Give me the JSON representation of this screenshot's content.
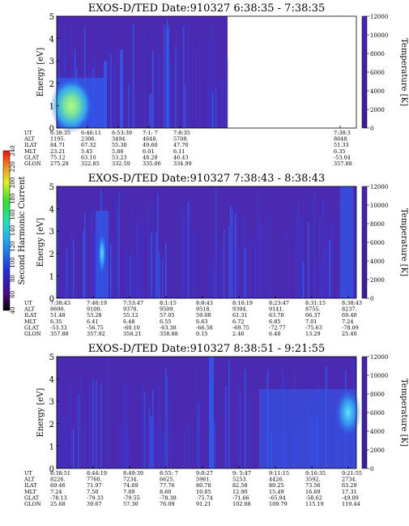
{
  "chart_data": [
    {
      "type": "heatmap",
      "title": "EXOS-D/TED   Date:910327  6:38:35 - 7:38:35",
      "ylabel": "Energy [eV]",
      "ylim": [
        0,
        5
      ],
      "y_ticks": [
        "0",
        "1",
        "2",
        "3",
        "4",
        "5"
      ],
      "colorbar_label": "Temperature [K]",
      "colorbar_range": [
        0,
        12000
      ],
      "colorbar_ticks": [
        "0",
        "2000",
        "4000",
        "6000",
        "8000",
        "10000",
        "12000"
      ],
      "ephemeris": {
        "labels": [
          "UT",
          "ALT",
          "ILAT",
          "MLT",
          "GLAT",
          "GLON"
        ],
        "columns": [
          [
            "6:38:35",
            "1195.",
            "84.71",
            "23.21",
            "75.12",
            "275.28"
          ],
          [
            "6:46:11",
            "2306.",
            "67.32",
            "5.45",
            "63.10",
            "322.85"
          ],
          [
            "6:53:39",
            "3494.",
            "55.30",
            "5.86",
            "53.23",
            "332.59"
          ],
          [
            "7:1: 7",
            "4648.",
            "49.60",
            "6.01",
            "48.28",
            "335.06"
          ],
          [
            "7:8:35",
            "5708.",
            "47.70",
            "6.11",
            "46.43",
            "334.99"
          ],
          [
            "7:38:3",
            "8648.",
            "51.33",
            "6.35",
            "-53.04",
            "357.88"
          ]
        ]
      }
    },
    {
      "type": "heatmap",
      "title": "EXOS-D/TED   Date:910327  7:38:43 - 8:38:43",
      "ylabel": "Energy [eV]",
      "ylim": [
        0,
        5
      ],
      "y_ticks": [
        "0",
        "1",
        "2",
        "3",
        "4",
        "5"
      ],
      "colorbar_label": "Temperature [K]",
      "colorbar_range": [
        0,
        12000
      ],
      "colorbar_ticks": [
        "0",
        "2000",
        "4000",
        "6000",
        "8000",
        "10000",
        "12000"
      ],
      "ephemeris": {
        "labels": [
          "UT",
          "ALT",
          "ILAT",
          "MLT",
          "GLAT",
          "GLON"
        ],
        "columns": [
          [
            "7:38:43",
            "8690.",
            "51.48",
            "6.35",
            "-53.33",
            "357.88"
          ],
          [
            "7:46:19",
            "9100.",
            "53.28",
            "6.41",
            "-56.75",
            "357.92"
          ],
          [
            "7:53:47",
            "9370.",
            "55.12",
            "6.48",
            "-60.10",
            "358.21"
          ],
          [
            "8:1:15",
            "9509.",
            "57.05",
            "6.55",
            "-63.38",
            "358.88"
          ],
          [
            "8:8:43",
            "9518.",
            "59.08",
            "6.63",
            "-66.58",
            "0.15"
          ],
          [
            "8:16:19",
            "9394.",
            "61.31",
            "6.72",
            "-69.75",
            "2.46"
          ],
          [
            "8:23:47",
            "9141.",
            "63.70",
            "6.85",
            "-72.77",
            "6.40"
          ],
          [
            "8:31:15",
            "8755.",
            "66.37",
            "7.01",
            "-75.63",
            "13.29"
          ],
          [
            "8:38:43",
            "8237.",
            "69.40",
            "7.24",
            "-78.09",
            "25.40"
          ]
        ]
      }
    },
    {
      "type": "heatmap",
      "title": "EXOS-D/TED   Date:910327  8:38:51 - 9:21:55",
      "ylabel": "Energy [eV]",
      "ylim": [
        0,
        5
      ],
      "y_ticks": [
        "0",
        "1",
        "2",
        "3",
        "4",
        "5"
      ],
      "colorbar_label": "Temperature [K]",
      "colorbar_range": [
        0,
        12000
      ],
      "colorbar_ticks": [
        "0",
        "2000",
        "4000",
        "6000",
        "8000",
        "10000",
        "12000"
      ],
      "ephemeris": {
        "labels": [
          "UT",
          "ALT",
          "ILAT",
          "MLT",
          "GLAT",
          "GLON"
        ],
        "columns": [
          [
            "8:38:51",
            "8226.",
            "69.46",
            "7.24",
            "-78.13",
            "25.68"
          ],
          [
            "8:44:19",
            "7760.",
            "71.97",
            "7.50",
            "-79.33",
            "39.67"
          ],
          [
            "8:49:39",
            "7234.",
            "74.69",
            "7.89",
            "-79.55",
            "57.30"
          ],
          [
            "8:55: 7",
            "6625.",
            "77.76",
            "8.60",
            "-78.38",
            "76.09"
          ],
          [
            "9:0:27",
            "5961.",
            "80.78",
            "10.05",
            "-75.74",
            "91.21"
          ],
          [
            "9: 5:47",
            "5253.",
            "82.58",
            "12.90",
            "-71.66",
            "102.08"
          ],
          [
            "9:11:15",
            "4426.",
            "80.25",
            "15.49",
            "-65.94",
            "109.79"
          ],
          [
            "9:16:35",
            "3592.",
            "73.56",
            "16.69",
            "-58.62",
            "115.19"
          ],
          [
            "9:21:55",
            "2734.",
            "63.29",
            "17.31",
            "-49.09",
            "119.44"
          ]
        ]
      }
    }
  ],
  "side_colorbar": {
    "label": "Second Harmonic Current",
    "ticks": [
      "40",
      "60",
      "80",
      "100",
      "120",
      "140",
      "160",
      "180",
      "200",
      "220",
      "240"
    ]
  },
  "colors": {
    "background_blue": "#4a2ab0",
    "mid_blue": "#2f5cf0",
    "cyan": "#34c8f4",
    "green": "#7cf29a"
  }
}
